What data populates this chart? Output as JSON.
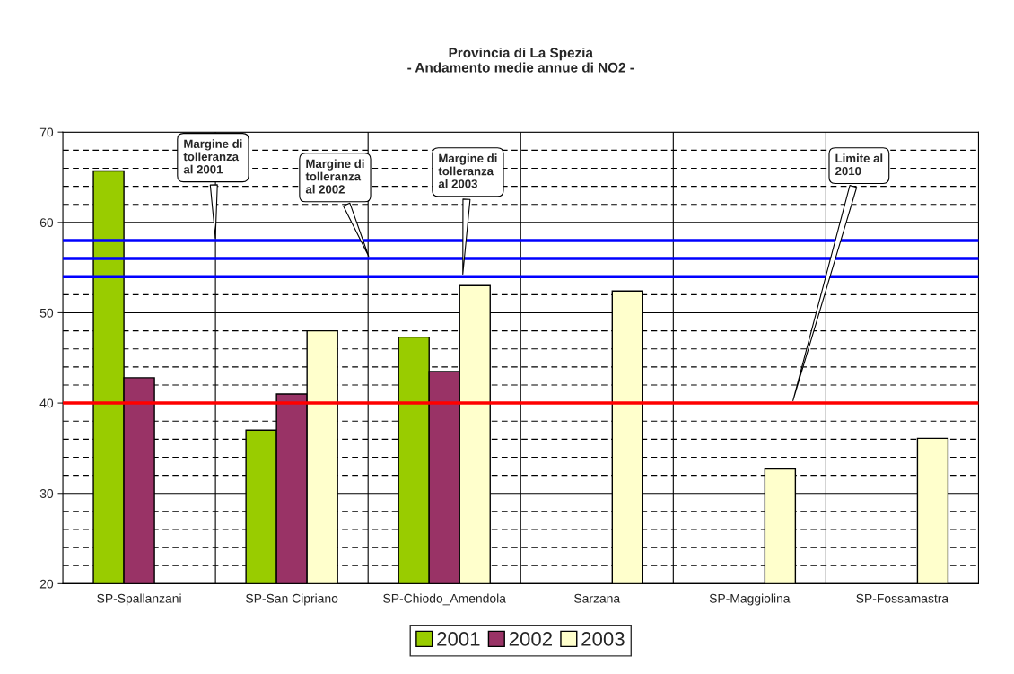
{
  "chart_data": {
    "type": "bar",
    "title": "Provincia di La Spezia\n- Andamento medie annue di NO2 -",
    "categories": [
      "SP-Spallanzani",
      "SP-San Cipriano",
      "SP-Chiodo_Amendola",
      "Sarzana",
      "SP-Maggiolina",
      "SP-Fossamastra"
    ],
    "series": [
      {
        "name": "2001",
        "color": "#99cc00",
        "values": [
          65.7,
          37.0,
          47.3,
          null,
          null,
          null
        ]
      },
      {
        "name": "2002",
        "color": "#993366",
        "values": [
          42.8,
          41.0,
          43.5,
          null,
          null,
          null
        ]
      },
      {
        "name": "2003",
        "color": "#ffffcc",
        "values": [
          null,
          48.0,
          53.0,
          52.4,
          32.7,
          36.1
        ]
      }
    ],
    "ylim": [
      20,
      70
    ],
    "yticks": [
      20,
      30,
      40,
      50,
      60,
      70
    ],
    "grid": true,
    "legend": "bottom",
    "ref_lines": [
      {
        "axis": "y",
        "value": 58,
        "label": "Margine di\ntolleranza\nal 2001",
        "color": "#0000ff"
      },
      {
        "axis": "y",
        "value": 56,
        "label": "Margine di\ntolleranza\nal 2002",
        "color": "#0000ff"
      },
      {
        "axis": "y",
        "value": 54,
        "label": "Margine di\ntolleranza\nal 2003",
        "color": "#0000ff"
      },
      {
        "axis": "y",
        "value": 40,
        "label": "Limite al\n2010",
        "color": "#ff0000"
      }
    ]
  }
}
